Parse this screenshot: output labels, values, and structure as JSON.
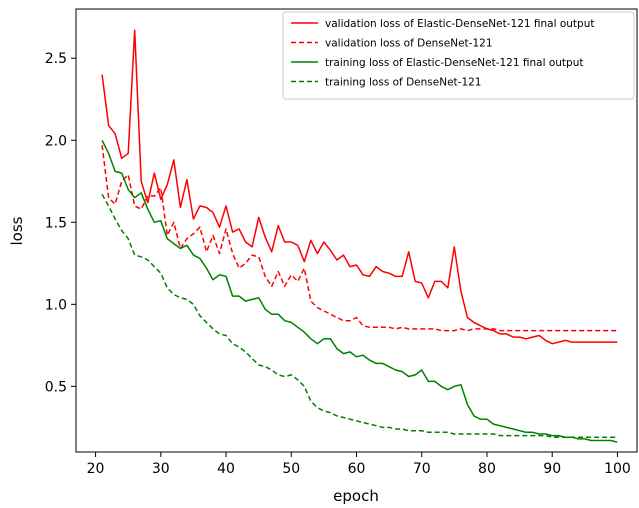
{
  "chart_data": {
    "type": "line",
    "xlabel": "epoch",
    "ylabel": "loss",
    "xlim": [
      17,
      103
    ],
    "ylim": [
      0.1,
      2.8
    ],
    "xticks": [
      20,
      30,
      40,
      50,
      60,
      70,
      80,
      90,
      100
    ],
    "yticks": [
      0.5,
      1.0,
      1.5,
      2.0,
      2.5
    ],
    "grid": false,
    "legend_position": "top-right",
    "series": [
      {
        "name": "validation loss of Elastic-DenseNet-121 final output",
        "color": "#ff0000",
        "dash": "solid",
        "x": [
          21,
          22,
          23,
          24,
          25,
          26,
          27,
          28,
          29,
          30,
          31,
          32,
          33,
          34,
          35,
          36,
          37,
          38,
          39,
          40,
          41,
          42,
          43,
          44,
          45,
          46,
          47,
          48,
          49,
          50,
          51,
          52,
          53,
          54,
          55,
          56,
          57,
          58,
          59,
          60,
          61,
          62,
          63,
          64,
          65,
          66,
          67,
          68,
          69,
          70,
          71,
          72,
          73,
          74,
          75,
          76,
          77,
          78,
          79,
          80,
          81,
          82,
          83,
          84,
          85,
          86,
          87,
          88,
          89,
          90,
          91,
          92,
          93,
          94,
          95,
          96,
          97,
          98,
          99,
          100
        ],
        "y": [
          2.4,
          2.09,
          2.04,
          1.89,
          1.92,
          2.67,
          1.75,
          1.62,
          1.8,
          1.64,
          1.73,
          1.88,
          1.59,
          1.76,
          1.52,
          1.6,
          1.59,
          1.56,
          1.47,
          1.6,
          1.44,
          1.46,
          1.38,
          1.35,
          1.53,
          1.41,
          1.32,
          1.48,
          1.38,
          1.38,
          1.36,
          1.26,
          1.39,
          1.31,
          1.38,
          1.33,
          1.27,
          1.3,
          1.23,
          1.24,
          1.18,
          1.17,
          1.23,
          1.2,
          1.19,
          1.17,
          1.17,
          1.32,
          1.14,
          1.13,
          1.04,
          1.14,
          1.14,
          1.1,
          1.35,
          1.08,
          0.92,
          0.89,
          0.87,
          0.85,
          0.84,
          0.82,
          0.82,
          0.8,
          0.8,
          0.79,
          0.8,
          0.81,
          0.78,
          0.76,
          0.77,
          0.78,
          0.77,
          0.77,
          0.77,
          0.77,
          0.77,
          0.77,
          0.77,
          0.77
        ]
      },
      {
        "name": "validation loss of DenseNet-121",
        "color": "#ff0000",
        "dash": "dashed",
        "x": [
          21,
          22,
          23,
          24,
          25,
          26,
          27,
          28,
          29,
          30,
          31,
          32,
          33,
          34,
          35,
          36,
          37,
          38,
          39,
          40,
          41,
          42,
          43,
          44,
          45,
          46,
          47,
          48,
          49,
          50,
          51,
          52,
          53,
          54,
          55,
          56,
          57,
          58,
          59,
          60,
          61,
          62,
          63,
          64,
          65,
          66,
          67,
          68,
          69,
          70,
          71,
          72,
          73,
          74,
          75,
          76,
          77,
          78,
          79,
          80,
          81,
          82,
          83,
          84,
          85,
          86,
          87,
          88,
          89,
          90,
          91,
          92,
          93,
          94,
          95,
          96,
          97,
          98,
          99,
          100
        ],
        "y": [
          1.97,
          1.65,
          1.61,
          1.75,
          1.79,
          1.6,
          1.58,
          1.66,
          1.66,
          1.71,
          1.42,
          1.5,
          1.34,
          1.4,
          1.43,
          1.47,
          1.32,
          1.42,
          1.31,
          1.46,
          1.31,
          1.22,
          1.25,
          1.3,
          1.29,
          1.17,
          1.11,
          1.2,
          1.11,
          1.18,
          1.14,
          1.22,
          1.02,
          0.98,
          0.96,
          0.94,
          0.92,
          0.9,
          0.9,
          0.92,
          0.87,
          0.86,
          0.86,
          0.86,
          0.86,
          0.85,
          0.86,
          0.85,
          0.85,
          0.85,
          0.85,
          0.85,
          0.84,
          0.84,
          0.84,
          0.85,
          0.84,
          0.85,
          0.85,
          0.85,
          0.85,
          0.84,
          0.84,
          0.84,
          0.84,
          0.84,
          0.84,
          0.84,
          0.84,
          0.84,
          0.84,
          0.84,
          0.84,
          0.84,
          0.84,
          0.84,
          0.84,
          0.84,
          0.84,
          0.84
        ]
      },
      {
        "name": "training loss of Elastic-DenseNet-121 final output",
        "color": "#008000",
        "dash": "solid",
        "x": [
          21,
          22,
          23,
          24,
          25,
          26,
          27,
          28,
          29,
          30,
          31,
          32,
          33,
          34,
          35,
          36,
          37,
          38,
          39,
          40,
          41,
          42,
          43,
          44,
          45,
          46,
          47,
          48,
          49,
          50,
          51,
          52,
          53,
          54,
          55,
          56,
          57,
          58,
          59,
          60,
          61,
          62,
          63,
          64,
          65,
          66,
          67,
          68,
          69,
          70,
          71,
          72,
          73,
          74,
          75,
          76,
          77,
          78,
          79,
          80,
          81,
          82,
          83,
          84,
          85,
          86,
          87,
          88,
          89,
          90,
          91,
          92,
          93,
          94,
          95,
          96,
          97,
          98,
          99,
          100
        ],
        "y": [
          2.0,
          1.92,
          1.81,
          1.8,
          1.7,
          1.65,
          1.68,
          1.58,
          1.5,
          1.51,
          1.4,
          1.37,
          1.34,
          1.36,
          1.3,
          1.28,
          1.22,
          1.15,
          1.18,
          1.17,
          1.05,
          1.05,
          1.02,
          1.03,
          1.04,
          0.97,
          0.94,
          0.94,
          0.9,
          0.89,
          0.86,
          0.83,
          0.79,
          0.76,
          0.79,
          0.79,
          0.73,
          0.7,
          0.71,
          0.68,
          0.69,
          0.66,
          0.64,
          0.64,
          0.62,
          0.6,
          0.59,
          0.56,
          0.57,
          0.6,
          0.53,
          0.53,
          0.5,
          0.48,
          0.5,
          0.51,
          0.39,
          0.32,
          0.3,
          0.3,
          0.27,
          0.26,
          0.25,
          0.24,
          0.23,
          0.22,
          0.22,
          0.21,
          0.21,
          0.2,
          0.2,
          0.19,
          0.19,
          0.18,
          0.18,
          0.17,
          0.17,
          0.17,
          0.17,
          0.16
        ]
      },
      {
        "name": "training loss of DenseNet-121",
        "color": "#008000",
        "dash": "dashed",
        "x": [
          21,
          22,
          23,
          24,
          25,
          26,
          27,
          28,
          29,
          30,
          31,
          32,
          33,
          34,
          35,
          36,
          37,
          38,
          39,
          40,
          41,
          42,
          43,
          44,
          45,
          46,
          47,
          48,
          49,
          50,
          51,
          52,
          53,
          54,
          55,
          56,
          57,
          58,
          59,
          60,
          61,
          62,
          63,
          64,
          65,
          66,
          67,
          68,
          69,
          70,
          71,
          72,
          73,
          74,
          75,
          76,
          77,
          78,
          79,
          80,
          81,
          82,
          83,
          84,
          85,
          86,
          87,
          88,
          89,
          90,
          91,
          92,
          93,
          94,
          95,
          96,
          97,
          98,
          99,
          100
        ],
        "y": [
          1.67,
          1.6,
          1.52,
          1.45,
          1.4,
          1.3,
          1.29,
          1.27,
          1.23,
          1.19,
          1.1,
          1.06,
          1.04,
          1.03,
          1.0,
          0.93,
          0.89,
          0.85,
          0.82,
          0.81,
          0.76,
          0.74,
          0.71,
          0.67,
          0.63,
          0.62,
          0.6,
          0.57,
          0.56,
          0.57,
          0.54,
          0.5,
          0.41,
          0.37,
          0.35,
          0.34,
          0.32,
          0.31,
          0.3,
          0.29,
          0.28,
          0.27,
          0.26,
          0.25,
          0.25,
          0.24,
          0.24,
          0.23,
          0.23,
          0.23,
          0.22,
          0.22,
          0.22,
          0.22,
          0.21,
          0.21,
          0.21,
          0.21,
          0.21,
          0.21,
          0.21,
          0.2,
          0.2,
          0.2,
          0.2,
          0.2,
          0.2,
          0.2,
          0.2,
          0.19,
          0.19,
          0.19,
          0.19,
          0.19,
          0.19,
          0.19,
          0.19,
          0.19,
          0.19,
          0.19
        ]
      }
    ]
  }
}
